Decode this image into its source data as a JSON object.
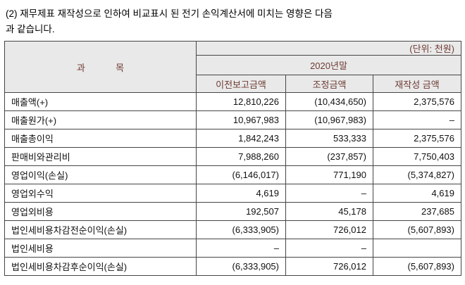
{
  "colors": {
    "header_bg": "#e9e9e9",
    "header_text": "#6e3b33",
    "border": "#454545",
    "body_text": "#111111",
    "page_bg": "#ffffff"
  },
  "title": {
    "line1": "(2) 재무제표 재작성으로 인하여 비교표시 된 전기 손익계산서에 미치는 영향은 다음",
    "line2": "과 같습니다."
  },
  "table": {
    "unit_label": "(단위: 천원)",
    "item_header": "과            목",
    "period_header": "2020년말",
    "columns": [
      "이전보고금액",
      "조정금액",
      "재작성 금액"
    ],
    "rows": [
      {
        "label": "매출액(+)",
        "values": [
          "12,810,226",
          "(10,434,650)",
          "2,375,576"
        ]
      },
      {
        "label": "매출원가(+)",
        "values": [
          "10,967,983",
          "(10,967,983)",
          "–"
        ]
      },
      {
        "label": "매출총이익",
        "values": [
          "1,842,243",
          "533,333",
          "2,375,576"
        ]
      },
      {
        "label": "판매비와관리비",
        "values": [
          "7,988,260",
          "(237,857)",
          "7,750,403"
        ]
      },
      {
        "label": "영업이익(손실)",
        "values": [
          "(6,146,017)",
          "771,190",
          "(5,374,827)"
        ]
      },
      {
        "label": "영업외수익",
        "values": [
          "4,619",
          "–",
          "4,619"
        ]
      },
      {
        "label": "영업외비용",
        "values": [
          "192,507",
          "45,178",
          "237,685"
        ]
      },
      {
        "label": "법인세비용차감전순이익(손실)",
        "values": [
          "(6,333,905)",
          "726,012",
          "(5,607,893)"
        ]
      },
      {
        "label": "법인세비용",
        "values": [
          "–",
          "–",
          ""
        ]
      },
      {
        "label": "법인세비용차감후순이익(손실)",
        "values": [
          "(6,333,905)",
          "726,012",
          "(5,607,893)"
        ]
      }
    ]
  }
}
